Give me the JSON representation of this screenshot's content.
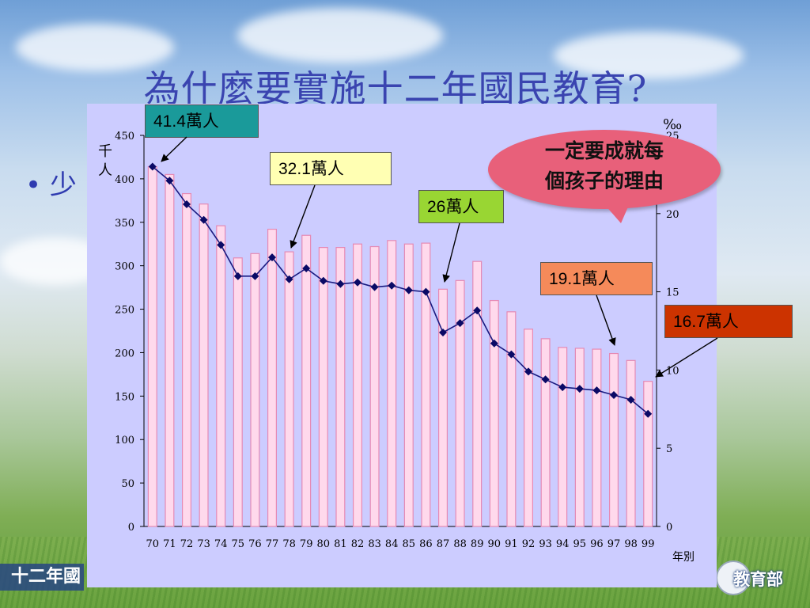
{
  "slide": {
    "title": "為什麼要實施十二年國民教育?",
    "bullet": "少",
    "footer_left": "十二年國",
    "footer_right": "教育部"
  },
  "callouts": {
    "c1": "41.4萬人",
    "c2": "32.1萬人",
    "c3": "26萬人",
    "c4": "19.1萬人",
    "c5": "16.7萬人"
  },
  "speech_bubble": {
    "line1": "一定要成就每",
    "line2": "個孩子的理由"
  },
  "colors": {
    "plot_bg": "#ccccff",
    "bar_fill": "#ffd9ec",
    "bar_stroke": "#e58ab5",
    "line": "#1a1a80",
    "marker": "#0a0a66"
  },
  "chart_data": {
    "type": "bar",
    "xlabel": "年別",
    "ylabel": "千人",
    "y2label": "‰",
    "categories": [
      "70",
      "71",
      "72",
      "73",
      "74",
      "75",
      "76",
      "77",
      "78",
      "79",
      "80",
      "81",
      "82",
      "83",
      "84",
      "85",
      "86",
      "87",
      "88",
      "89",
      "90",
      "91",
      "92",
      "93",
      "94",
      "95",
      "96",
      "97",
      "98",
      "99"
    ],
    "ylim": [
      0,
      450
    ],
    "yticks": [
      0,
      50,
      100,
      150,
      200,
      250,
      300,
      350,
      400,
      450
    ],
    "y2lim": [
      0,
      25
    ],
    "y2ticks": [
      0,
      5,
      10,
      15,
      20,
      25
    ],
    "series": [
      {
        "type": "bar",
        "axis": "left",
        "values": [
          414,
          405,
          383,
          371,
          346,
          309,
          314,
          342,
          316,
          335,
          321,
          321,
          325,
          322,
          329,
          325,
          326,
          273,
          283,
          305,
          260,
          247,
          227,
          216,
          206,
          205,
          204,
          199,
          191,
          167
        ]
      },
      {
        "type": "line",
        "axis": "right",
        "values": [
          23.0,
          22.1,
          20.6,
          19.6,
          18.0,
          16.0,
          16.0,
          17.2,
          15.8,
          16.5,
          15.7,
          15.5,
          15.6,
          15.3,
          15.4,
          15.1,
          15.0,
          12.4,
          13.0,
          13.8,
          11.7,
          11.0,
          9.9,
          9.4,
          8.9,
          8.8,
          8.7,
          8.4,
          8.1,
          7.2
        ]
      }
    ]
  }
}
